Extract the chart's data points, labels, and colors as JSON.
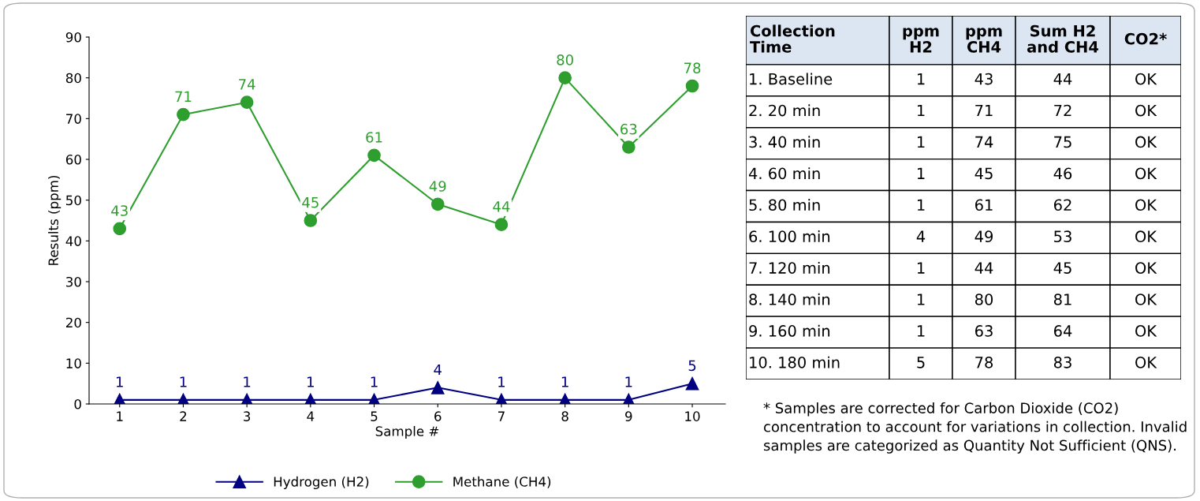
{
  "chart_data": [
    {
      "type": "line",
      "xlabel": "Sample #",
      "ylabel": "Results (ppm)",
      "categories": [
        "1",
        "2",
        "3",
        "4",
        "5",
        "6",
        "7",
        "8",
        "9",
        "10"
      ],
      "series": [
        {
          "name": "Hydrogen (H2)",
          "color": "#000080",
          "marker": "triangle",
          "values": [
            1,
            1,
            1,
            1,
            1,
            4,
            1,
            1,
            1,
            5
          ]
        },
        {
          "name": "Methane (CH4)",
          "color": "#2e9e2e",
          "marker": "circle",
          "values": [
            43,
            71,
            74,
            45,
            61,
            49,
            44,
            80,
            63,
            78
          ]
        }
      ],
      "ylim": [
        0,
        90
      ],
      "yticks": [
        0,
        10,
        20,
        30,
        40,
        50,
        60,
        70,
        80,
        90
      ],
      "grid": false,
      "legend": "bottom",
      "data_labels": true,
      "line_style": "solid"
    },
    {
      "type": "other",
      "categories": [
        "Collection\nTime",
        "ppm\nH2",
        "ppm\nCH4",
        "Sum H2\nand CH4",
        "CO2*"
      ],
      "cell_labels": [
        [
          "1. Baseline",
          "1",
          "43",
          "44",
          "OK"
        ],
        [
          "2. 20 min",
          "1",
          "71",
          "72",
          "OK"
        ],
        [
          "3. 40 min",
          "1",
          "74",
          "75",
          "OK"
        ],
        [
          "4. 60 min",
          "1",
          "45",
          "46",
          "OK"
        ],
        [
          "5. 80 min",
          "1",
          "61",
          "62",
          "OK"
        ],
        [
          "6. 100 min",
          "4",
          "49",
          "53",
          "OK"
        ],
        [
          "7. 120 min",
          "1",
          "44",
          "45",
          "OK"
        ],
        [
          "8. 140 min",
          "1",
          "80",
          "81",
          "OK"
        ],
        [
          "9. 160 min",
          "1",
          "63",
          "64",
          "OK"
        ],
        [
          "10. 180 min",
          "5",
          "78",
          "83",
          "OK"
        ]
      ],
      "annotations": [
        "* Samples are corrected for Carbon Dioxide (CO2) concentration to account for variations in collection. Invalid samples are categorized as Quantity Not Sufficient (QNS)."
      ]
    }
  ]
}
